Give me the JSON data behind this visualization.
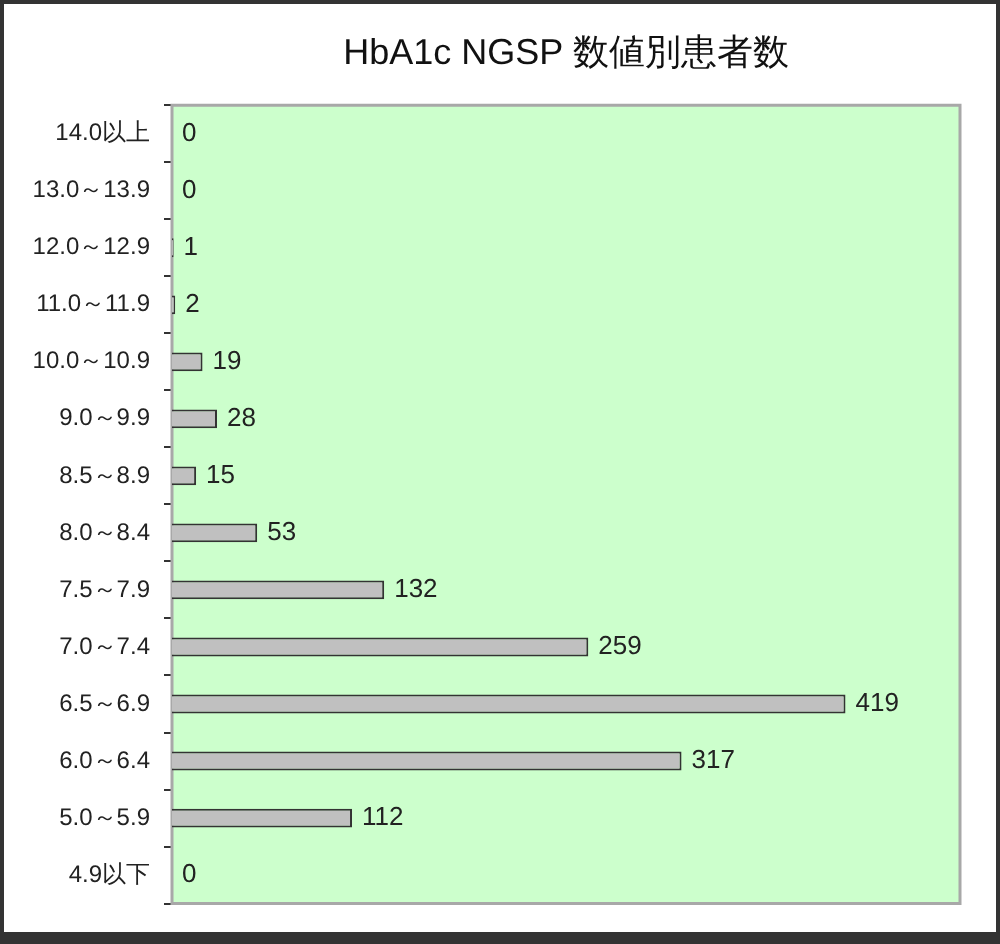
{
  "chart_data": {
    "type": "bar",
    "orientation": "horizontal",
    "title": "HbA1c NGSP 数値別患者数",
    "categories": [
      "14.0以上",
      "13.0～13.9",
      "12.0～12.9",
      "11.0～11.9",
      "10.0～10.9",
      "9.0～9.9",
      "8.5～8.9",
      "8.0～8.4",
      "7.5～7.9",
      "7.0～7.4",
      "6.5～6.9",
      "6.0～6.4",
      "5.0～5.9",
      "4.9以下"
    ],
    "values": [
      0,
      0,
      1,
      2,
      19,
      28,
      15,
      53,
      132,
      259,
      419,
      317,
      112,
      0
    ],
    "color": "#c0c0c0",
    "data_labels": true,
    "tick_labels": "y",
    "legend": false
  }
}
